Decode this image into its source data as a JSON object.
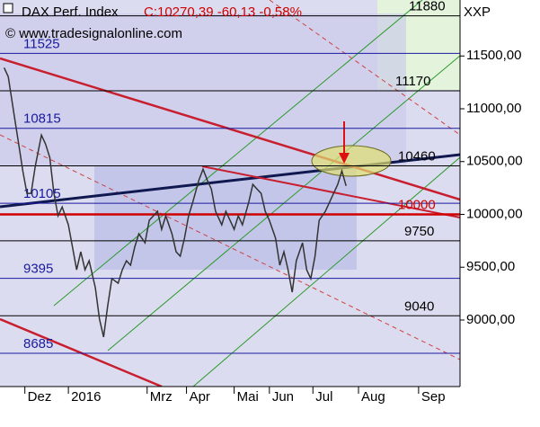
{
  "chart_data": {
    "type": "line",
    "title": "DAX Perf. Index",
    "quote": "C:10270,39 -60,13 -0,58%",
    "copyright": "© www.tradesignalonline.com",
    "symbol": "XXP",
    "x": [
      2,
      4,
      7,
      9,
      11,
      13,
      15,
      17,
      20,
      22,
      24,
      26,
      28,
      30,
      33,
      35,
      37,
      39,
      41,
      43,
      46,
      48,
      50,
      52,
      54,
      57,
      59,
      61,
      63,
      65,
      67,
      70,
      72,
      74,
      76,
      78,
      80,
      83,
      85,
      87,
      89,
      91,
      93,
      96,
      98,
      100,
      102,
      104,
      107,
      109,
      111,
      113,
      115,
      117,
      120,
      122,
      124,
      126,
      128,
      130,
      133,
      135,
      137,
      139,
      141,
      143,
      146,
      148,
      150,
      152,
      154,
      157,
      159,
      161,
      163,
      165,
      167
    ],
    "series": [
      {
        "name": "DAX",
        "color": "#333333",
        "values": [
          11389,
          11304,
          10921,
          10666,
          10411,
          10199,
          10199,
          10454,
          10751,
          10666,
          10539,
          10199,
          9986,
          10071,
          9901,
          9689,
          9476,
          9646,
          9476,
          9561,
          9306,
          9009,
          8839,
          9136,
          9391,
          9349,
          9476,
          9561,
          9519,
          9689,
          9816,
          9731,
          9944,
          9986,
          10029,
          9859,
          9986,
          9816,
          9646,
          9604,
          9774,
          9986,
          10114,
          10326,
          10428,
          10326,
          10241,
          10029,
          9901,
          10029,
          9944,
          9859,
          9986,
          9901,
          10114,
          10284,
          10241,
          10199,
          10029,
          9944,
          9774,
          9519,
          9646,
          9476,
          9264,
          9561,
          9731,
          9476,
          9391,
          9604,
          9944,
          10029,
          10114,
          10199,
          10284,
          10411,
          10270
        ]
      }
    ],
    "xlim": [
      0,
      222
    ],
    "xticks": [
      {
        "value": 12,
        "label": "Dez"
      },
      {
        "value": 33,
        "label": "2016"
      },
      {
        "value": 71,
        "label": "Mrz"
      },
      {
        "value": 90,
        "label": "Apr"
      },
      {
        "value": 113,
        "label": "Mai"
      },
      {
        "value": 130,
        "label": "Jun"
      },
      {
        "value": 151,
        "label": "Jul"
      },
      {
        "value": 173,
        "label": "Aug"
      },
      {
        "value": 202,
        "label": "Sep"
      }
    ],
    "ylim": [
      8370,
      12030
    ],
    "yticks": [
      {
        "value": 9000,
        "label": "9000,00"
      },
      {
        "value": 9500,
        "label": "9500,00"
      },
      {
        "value": 10000,
        "label": "10000,00"
      },
      {
        "value": 10500,
        "label": "10500,00"
      },
      {
        "value": 11000,
        "label": "11000,00"
      },
      {
        "value": 11500,
        "label": "11500,00"
      }
    ],
    "levels": [
      11880,
      11525,
      11170,
      10815,
      10460,
      10105,
      10000,
      9750,
      9395,
      9040,
      8685
    ],
    "level_colors": [
      "#000000",
      "#1a1aa0",
      "#000000",
      "#1a1aa0",
      "#000000",
      "#1a1aa0",
      "#d00000",
      "#000000",
      "#1a1aa0",
      "#000000",
      "#1a1aa0"
    ]
  }
}
